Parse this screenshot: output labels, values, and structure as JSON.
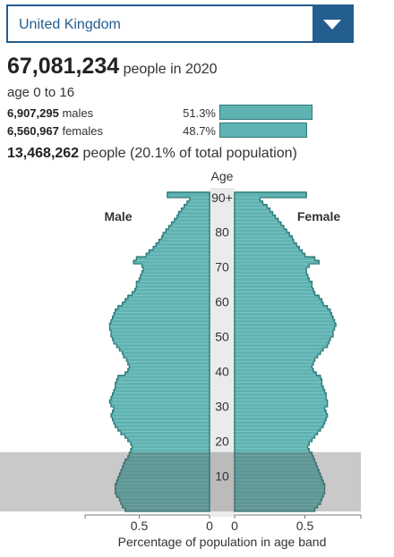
{
  "country_select": {
    "value": "United Kingdom"
  },
  "header": {
    "total_population": "67,081,234",
    "population_suffix": "people in 2020",
    "age_range": "age 0 to 16"
  },
  "stats": {
    "males": {
      "count": "6,907,295",
      "label": "males",
      "percent_text": "51.3%",
      "percent": 51.3
    },
    "females": {
      "count": "6,560,967",
      "label": "females",
      "percent_text": "48.7%",
      "percent": 48.7
    }
  },
  "summary": {
    "count": "13,468,262",
    "text": "people (20.1% of total population)"
  },
  "colors": {
    "accent": "#245d8f",
    "bar_fill": "#5eb3b2",
    "bar_stroke": "#2d7b7a",
    "highlight": "#c8c8c8",
    "axis_band": "#ebebeb"
  },
  "chart_data": {
    "type": "population_pyramid",
    "title": "",
    "age_axis_title": "Age",
    "age_tick_labels": [
      "90+",
      "80",
      "70",
      "60",
      "50",
      "40",
      "30",
      "20",
      "10"
    ],
    "age_ticks": [
      90,
      80,
      70,
      60,
      50,
      40,
      30,
      20,
      10
    ],
    "left_label": "Male",
    "right_label": "Female",
    "xlabel": "Percentage of population in age band",
    "x_tick_labels_male": [
      "0.5",
      "0"
    ],
    "x_tick_labels_female": [
      "0",
      "0.5"
    ],
    "xlim": [
      0,
      0.9
    ],
    "ylim": [
      0,
      90
    ],
    "highlight_range": [
      0,
      16
    ],
    "ages": [
      0,
      1,
      2,
      3,
      4,
      5,
      6,
      7,
      8,
      9,
      10,
      11,
      12,
      13,
      14,
      15,
      16,
      17,
      18,
      19,
      20,
      21,
      22,
      23,
      24,
      25,
      26,
      27,
      28,
      29,
      30,
      31,
      32,
      33,
      34,
      35,
      36,
      37,
      38,
      39,
      40,
      41,
      42,
      43,
      44,
      45,
      46,
      47,
      48,
      49,
      50,
      51,
      52,
      53,
      54,
      55,
      56,
      57,
      58,
      59,
      60,
      61,
      62,
      63,
      64,
      65,
      66,
      67,
      68,
      69,
      70,
      71,
      72,
      73,
      74,
      75,
      76,
      77,
      78,
      79,
      80,
      81,
      82,
      83,
      84,
      85,
      86,
      87,
      88,
      89,
      90
    ],
    "series": [
      {
        "name": "Male",
        "values": [
          0.6,
          0.62,
          0.63,
          0.64,
          0.66,
          0.67,
          0.67,
          0.67,
          0.66,
          0.65,
          0.64,
          0.63,
          0.62,
          0.61,
          0.6,
          0.58,
          0.57,
          0.56,
          0.55,
          0.56,
          0.58,
          0.6,
          0.63,
          0.65,
          0.67,
          0.68,
          0.69,
          0.7,
          0.69,
          0.68,
          0.7,
          0.71,
          0.7,
          0.69,
          0.68,
          0.67,
          0.67,
          0.66,
          0.65,
          0.6,
          0.58,
          0.57,
          0.58,
          0.59,
          0.61,
          0.62,
          0.64,
          0.66,
          0.68,
          0.69,
          0.7,
          0.7,
          0.71,
          0.71,
          0.7,
          0.69,
          0.68,
          0.67,
          0.65,
          0.62,
          0.6,
          0.58,
          0.55,
          0.53,
          0.52,
          0.52,
          0.5,
          0.49,
          0.48,
          0.47,
          0.48,
          0.54,
          0.52,
          0.45,
          0.43,
          0.4,
          0.38,
          0.36,
          0.34,
          0.33,
          0.31,
          0.29,
          0.27,
          0.25,
          0.23,
          0.22,
          0.2,
          0.18,
          0.16,
          0.14,
          0.3
        ]
      },
      {
        "name": "Female",
        "values": [
          0.57,
          0.59,
          0.61,
          0.62,
          0.63,
          0.64,
          0.64,
          0.64,
          0.63,
          0.62,
          0.61,
          0.6,
          0.59,
          0.58,
          0.57,
          0.56,
          0.55,
          0.53,
          0.52,
          0.53,
          0.55,
          0.57,
          0.59,
          0.61,
          0.63,
          0.64,
          0.65,
          0.66,
          0.65,
          0.64,
          0.66,
          0.66,
          0.65,
          0.65,
          0.64,
          0.63,
          0.62,
          0.62,
          0.61,
          0.58,
          0.56,
          0.55,
          0.56,
          0.57,
          0.59,
          0.61,
          0.63,
          0.66,
          0.67,
          0.68,
          0.7,
          0.7,
          0.71,
          0.72,
          0.71,
          0.7,
          0.69,
          0.68,
          0.66,
          0.63,
          0.62,
          0.6,
          0.57,
          0.56,
          0.55,
          0.55,
          0.53,
          0.52,
          0.51,
          0.51,
          0.53,
          0.6,
          0.57,
          0.5,
          0.48,
          0.46,
          0.44,
          0.42,
          0.41,
          0.39,
          0.37,
          0.35,
          0.33,
          0.31,
          0.29,
          0.27,
          0.25,
          0.23,
          0.2,
          0.18,
          0.51
        ]
      }
    ]
  }
}
